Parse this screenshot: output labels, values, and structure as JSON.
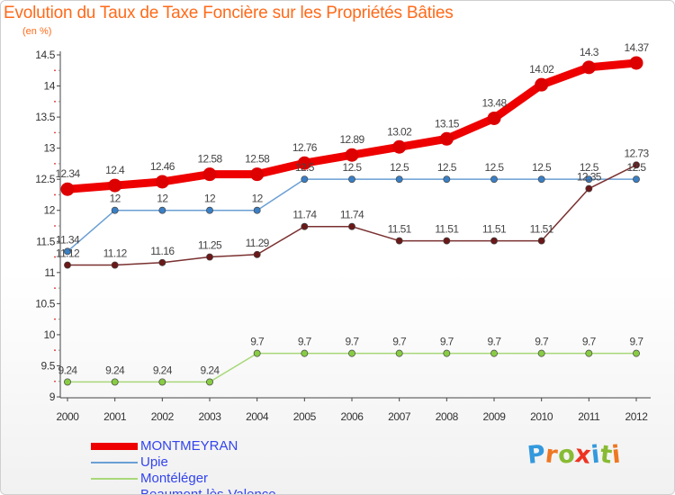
{
  "chart_data": {
    "type": "line",
    "title": "Evolution du Taux de Taxe Foncière sur les Propriétés Bâties",
    "unit_label": "(en %)",
    "xlabel": "",
    "ylabel": "",
    "x": [
      "2000",
      "2001",
      "2002",
      "2003",
      "2004",
      "2005",
      "2006",
      "2007",
      "2008",
      "2009",
      "2010",
      "2011",
      "2012"
    ],
    "ylim": [
      9,
      14.5
    ],
    "yticks": [
      "9",
      "9.5",
      "10",
      "10.5",
      "11",
      "11.5",
      "12",
      "12.5",
      "13",
      "13.5",
      "14",
      "14.5"
    ],
    "grid": false,
    "legend_position": "bottom-left",
    "series": [
      {
        "name": "MONTMEYRAN",
        "color": "#ee0000",
        "point_color": "#dd0000",
        "emphasis": true,
        "values": [
          12.34,
          12.4,
          12.46,
          12.58,
          12.58,
          12.76,
          12.89,
          13.02,
          13.15,
          13.48,
          14.02,
          14.3,
          14.37
        ],
        "value_labels": [
          "12.34",
          "12.4",
          "12.46",
          "12.58",
          "12.58",
          "12.76",
          "12.89",
          "13.02",
          "13.15",
          "13.48",
          "14.02",
          "14.3",
          "14.37"
        ]
      },
      {
        "name": "Upie",
        "color": "#6a9fd4",
        "point_color": "#3a7fc4",
        "values": [
          11.34,
          12,
          12,
          12,
          12,
          12.5,
          12.5,
          12.5,
          12.5,
          12.5,
          12.5,
          12.5,
          12.5
        ],
        "value_labels": [
          "11.34",
          "12",
          "12",
          "12",
          "12",
          "12.5",
          "12.5",
          "12.5",
          "12.5",
          "12.5",
          "12.5",
          "12.5",
          "12.5"
        ]
      },
      {
        "name": "Montéléger",
        "color": "#a8d878",
        "point_color": "#88cc44",
        "values": [
          9.24,
          9.24,
          9.24,
          9.24,
          9.7,
          9.7,
          9.7,
          9.7,
          9.7,
          9.7,
          9.7,
          9.7,
          9.7
        ],
        "value_labels": [
          "9.24",
          "9.24",
          "9.24",
          "9.24",
          "9.7",
          "9.7",
          "9.7",
          "9.7",
          "9.7",
          "9.7",
          "9.7",
          "9.7",
          "9.7"
        ]
      },
      {
        "name": "Beaumont-lès-Valence",
        "color": "#7a3030",
        "point_color": "#6a1818",
        "values": [
          11.12,
          11.12,
          11.16,
          11.25,
          11.29,
          11.74,
          11.74,
          11.51,
          11.51,
          11.51,
          11.51,
          12.35,
          12.73
        ],
        "value_labels": [
          "11.12",
          "11.12",
          "11.16",
          "11.25",
          "11.29",
          "11.74",
          "11.74",
          "11.51",
          "11.51",
          "11.51",
          "11.51",
          "12.35",
          "12.73"
        ]
      }
    ]
  },
  "brand": {
    "letters": [
      "P",
      "r",
      "o",
      "x",
      "i",
      "t",
      "i"
    ],
    "colors": [
      "#3399dd",
      "#ee7722",
      "#88bb33",
      "#ee3322",
      "#3399dd",
      "#88bb33",
      "#ee7722"
    ]
  }
}
